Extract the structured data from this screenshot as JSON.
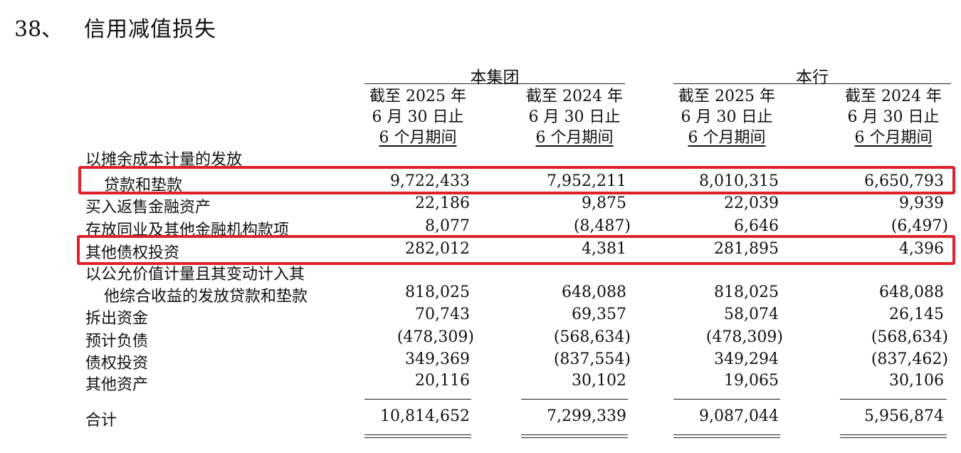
{
  "section": {
    "number": "38、",
    "title": "信用减值损失"
  },
  "groups": {
    "group_label": "本集团",
    "bank_label": "本行"
  },
  "columns": [
    {
      "line1": "截至 2025 年",
      "line2": "6 月 30 日止",
      "line3": "6 个月期间"
    },
    {
      "line1": "截至 2024 年",
      "line2": "6 月 30 日止",
      "line3": "6 个月期间"
    },
    {
      "line1": "截至 2025 年",
      "line2": "6 月 30 日止",
      "line3": "6 个月期间"
    },
    {
      "line1": "截至 2024 年",
      "line2": "6 月 30 日止",
      "line3": "6 个月期间"
    }
  ],
  "rows": [
    {
      "label": "以摊余成本计量的发放",
      "values": [
        "",
        "",
        "",
        ""
      ]
    },
    {
      "label": "贷款和垫款",
      "values": [
        "9,722,433",
        "7,952,211",
        "8,010,315",
        "6,650,793"
      ]
    },
    {
      "label": "买入返售金融资产",
      "values": [
        "22,186",
        "9,875",
        "22,039",
        "9,939"
      ]
    },
    {
      "label": "存放同业及其他金融机构款项",
      "values": [
        "8,077",
        "(8,487)",
        "6,646",
        "(6,497)"
      ]
    },
    {
      "label": "其他债权投资",
      "values": [
        "282,012",
        "4,381",
        "281,895",
        "4,396"
      ]
    },
    {
      "label": "以公允价值计量且其变动计入其",
      "values": [
        "",
        "",
        "",
        ""
      ]
    },
    {
      "label": "他综合收益的发放贷款和垫款",
      "values": [
        "818,025",
        "648,088",
        "818,025",
        "648,088"
      ]
    },
    {
      "label": "拆出资金",
      "values": [
        "70,743",
        "69,357",
        "58,074",
        "26,145"
      ]
    },
    {
      "label": "预计负债",
      "values": [
        "(478,309)",
        "(568,634)",
        "(478,309)",
        "(568,634)"
      ]
    },
    {
      "label": "债权投资",
      "values": [
        "349,369",
        "(837,554)",
        "349,294",
        "(837,462)"
      ]
    },
    {
      "label": "其他资产",
      "values": [
        "20,116",
        "30,102",
        "19,065",
        "30,106"
      ]
    }
  ],
  "total": {
    "label": "合计",
    "values": [
      "10,814,652",
      "7,299,339",
      "9,087,044",
      "5,956,874"
    ]
  },
  "colors": {
    "highlight": "#e0202a",
    "text": "#111111"
  }
}
